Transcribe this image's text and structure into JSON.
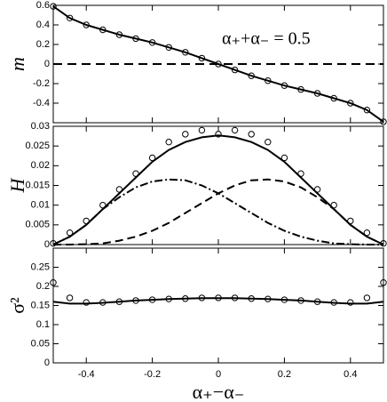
{
  "chart_data": [
    {
      "type": "line",
      "ylabel": "m",
      "annotation": "α₊+α₋ = 0.5",
      "xlim": [
        -0.5,
        0.5
      ],
      "xticks": [
        -0.4,
        -0.2,
        0,
        0.2,
        0.4
      ],
      "ylim": [
        -0.6,
        0.6
      ],
      "yticks": [
        -0.4,
        -0.2,
        0,
        0.2,
        0.4,
        0.6
      ],
      "hline": 0,
      "x": [
        -0.5,
        -0.45,
        -0.4,
        -0.35,
        -0.3,
        -0.25,
        -0.2,
        -0.15,
        -0.1,
        -0.05,
        0,
        0.05,
        0.1,
        0.15,
        0.2,
        0.25,
        0.3,
        0.35,
        0.4,
        0.45,
        0.5
      ],
      "series": [
        {
          "style": "solid",
          "color": "#000000",
          "values": [
            0.59,
            0.47,
            0.4,
            0.35,
            0.3,
            0.26,
            0.22,
            0.17,
            0.12,
            0.06,
            0,
            -0.06,
            -0.12,
            -0.17,
            -0.22,
            -0.26,
            -0.3,
            -0.35,
            -0.4,
            -0.47,
            -0.59
          ]
        },
        {
          "style": "markers",
          "color": "#000000",
          "values": [
            0.59,
            0.47,
            0.4,
            0.35,
            0.3,
            0.26,
            0.22,
            0.17,
            0.12,
            0.06,
            0,
            -0.06,
            -0.12,
            -0.17,
            -0.22,
            -0.26,
            -0.3,
            -0.35,
            -0.4,
            -0.47,
            -0.59
          ]
        }
      ]
    },
    {
      "type": "line",
      "ylabel": "H",
      "xlim": [
        -0.5,
        0.5
      ],
      "xticks": [
        -0.4,
        -0.2,
        0,
        0.2,
        0.4
      ],
      "ylim": [
        0,
        0.03
      ],
      "yticks": [
        0,
        0.005,
        0.01,
        0.015,
        0.02,
        0.025,
        0.03
      ],
      "x": [
        -0.5,
        -0.45,
        -0.4,
        -0.35,
        -0.3,
        -0.25,
        -0.2,
        -0.15,
        -0.1,
        -0.05,
        0,
        0.05,
        0.1,
        0.15,
        0.2,
        0.25,
        0.3,
        0.35,
        0.4,
        0.45,
        0.5
      ],
      "series": [
        {
          "style": "solid",
          "color": "#000000",
          "values": [
            0,
            0.002,
            0.005,
            0.009,
            0.013,
            0.017,
            0.021,
            0.024,
            0.026,
            0.0272,
            0.0277,
            0.0272,
            0.026,
            0.024,
            0.021,
            0.017,
            0.013,
            0.009,
            0.005,
            0.002,
            0
          ]
        },
        {
          "style": "markers",
          "color": "#000000",
          "values": [
            0.0003,
            0.003,
            0.006,
            0.01,
            0.014,
            0.018,
            0.022,
            0.026,
            0.028,
            0.029,
            0.028,
            0.029,
            0.028,
            0.026,
            0.022,
            0.018,
            0.014,
            0.01,
            0.006,
            0.003,
            0.0003
          ]
        },
        {
          "style": "dashdot",
          "color": "#000000",
          "values": [
            0,
            0.002,
            0.005,
            0.009,
            0.012,
            0.0145,
            0.016,
            0.0165,
            0.0163,
            0.015,
            0.013,
            0.0105,
            0.008,
            0.0055,
            0.0035,
            0.002,
            0.001,
            0.0003,
            0.0001,
            0,
            0
          ]
        },
        {
          "style": "dashed",
          "color": "#000000",
          "values": [
            0,
            0,
            0.0001,
            0.0003,
            0.001,
            0.002,
            0.0035,
            0.0055,
            0.008,
            0.0105,
            0.013,
            0.015,
            0.0163,
            0.0165,
            0.016,
            0.0145,
            0.012,
            0.009,
            0.005,
            0.002,
            0
          ]
        }
      ]
    },
    {
      "type": "line",
      "ylabel": "σ²",
      "xlabel": "α₊−α₋",
      "xlim": [
        -0.5,
        0.5
      ],
      "xticks": [
        -0.4,
        -0.2,
        0,
        0.2,
        0.4
      ],
      "ylim": [
        0,
        0.3
      ],
      "yticks": [
        0,
        0.05,
        0.1,
        0.15,
        0.2,
        0.25
      ],
      "x": [
        -0.5,
        -0.45,
        -0.4,
        -0.35,
        -0.3,
        -0.25,
        -0.2,
        -0.15,
        -0.1,
        -0.05,
        0,
        0.05,
        0.1,
        0.15,
        0.2,
        0.25,
        0.3,
        0.35,
        0.4,
        0.45,
        0.5
      ],
      "series": [
        {
          "style": "solid",
          "color": "#000000",
          "values": [
            0.16,
            0.155,
            0.155,
            0.157,
            0.16,
            0.163,
            0.165,
            0.167,
            0.168,
            0.169,
            0.169,
            0.169,
            0.168,
            0.167,
            0.165,
            0.163,
            0.16,
            0.157,
            0.155,
            0.155,
            0.16
          ]
        },
        {
          "style": "markers",
          "color": "#000000",
          "values": [
            0.21,
            0.17,
            0.158,
            0.158,
            0.16,
            0.163,
            0.165,
            0.167,
            0.168,
            0.17,
            0.17,
            0.17,
            0.168,
            0.167,
            0.165,
            0.163,
            0.16,
            0.158,
            0.158,
            0.17,
            0.21
          ]
        }
      ]
    }
  ]
}
